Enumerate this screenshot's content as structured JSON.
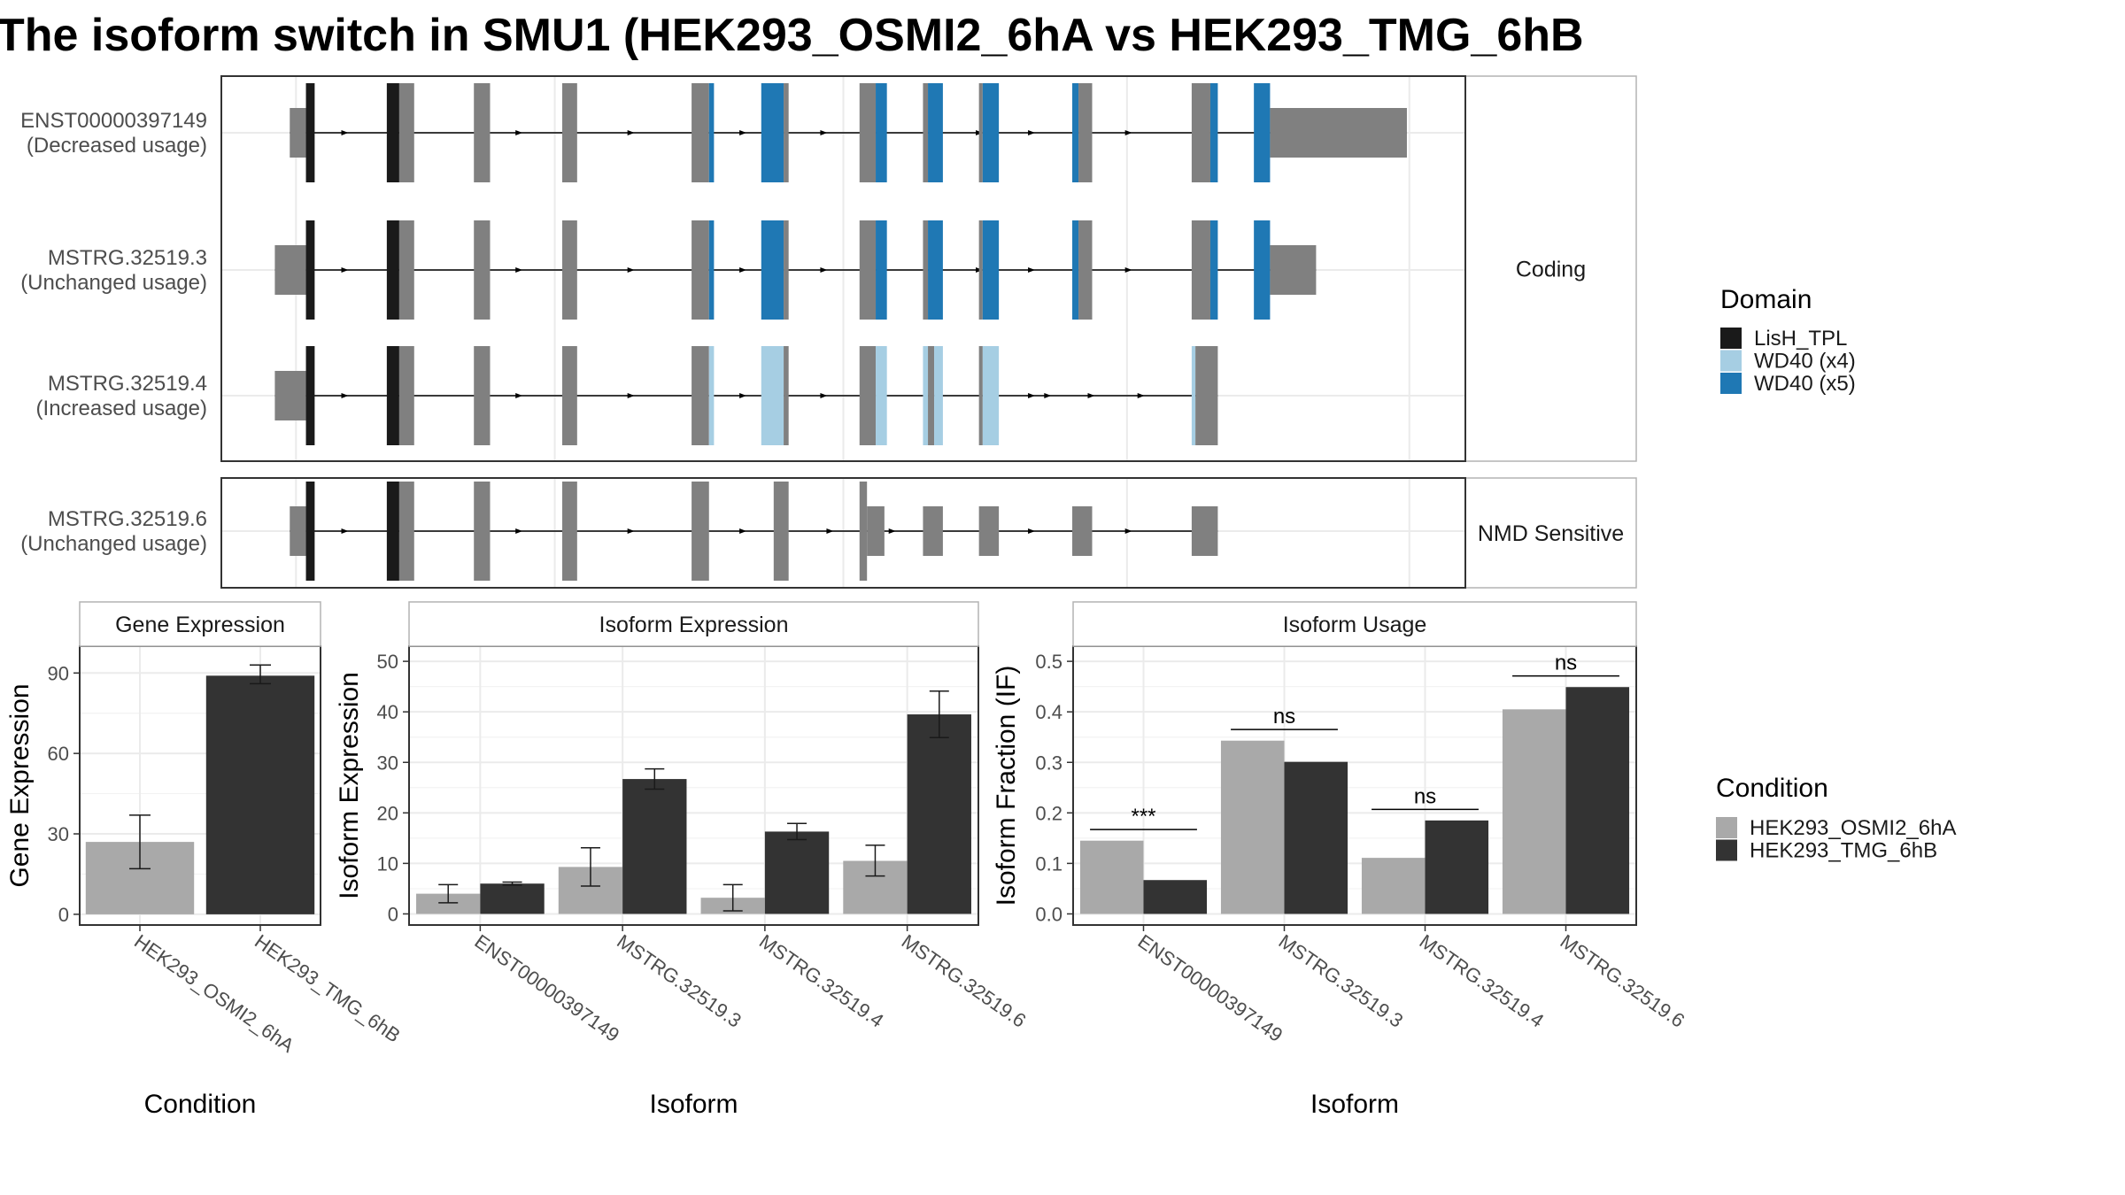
{
  "title": "The isoform switch in SMU1 (HEK293_OSMI2_6hA vs HEK293_TMG_6hB",
  "colors": {
    "exon": "#808080",
    "lish": "#1a1a1a",
    "wd40_x4": "#a6cee3",
    "wd40_x5": "#1f78b4",
    "cond_a": "#a9a9a9",
    "cond_b": "#333333",
    "grid": "#ebebeb",
    "panel_border": "#333333",
    "strip_border": "#b3b3b3"
  },
  "structure": {
    "groups": [
      {
        "label": "Coding",
        "rows": [
          0,
          1,
          2
        ]
      },
      {
        "label": "NMD Sensitive",
        "rows": [
          3
        ]
      }
    ],
    "transcripts": [
      {
        "name": "ENST00000397149",
        "usage": "(Decreased usage)",
        "start": 0.055,
        "end": 0.953,
        "exons": [
          {
            "s": 0.055,
            "e": 0.068,
            "h": "utr"
          },
          {
            "s": 0.068,
            "e": 0.075,
            "h": "lish"
          },
          {
            "s": 0.133,
            "e": 0.143,
            "h": "lish"
          },
          {
            "s": 0.143,
            "e": 0.155
          },
          {
            "s": 0.203,
            "e": 0.216
          },
          {
            "s": 0.274,
            "e": 0.286
          },
          {
            "s": 0.378,
            "e": 0.392
          },
          {
            "s": 0.392,
            "e": 0.396,
            "d": "wd40_x5"
          },
          {
            "s": 0.434,
            "e": 0.452,
            "d": "wd40_x5"
          },
          {
            "s": 0.452,
            "e": 0.456
          },
          {
            "s": 0.513,
            "e": 0.526
          },
          {
            "s": 0.526,
            "e": 0.535,
            "d": "wd40_x5"
          },
          {
            "s": 0.564,
            "e": 0.568
          },
          {
            "s": 0.568,
            "e": 0.58,
            "d": "wd40_x5"
          },
          {
            "s": 0.609,
            "e": 0.612
          },
          {
            "s": 0.612,
            "e": 0.625,
            "d": "wd40_x5"
          },
          {
            "s": 0.684,
            "e": 0.689,
            "d": "wd40_x5"
          },
          {
            "s": 0.689,
            "e": 0.7
          },
          {
            "s": 0.78,
            "e": 0.795
          },
          {
            "s": 0.795,
            "e": 0.801,
            "d": "wd40_x5"
          },
          {
            "s": 0.83,
            "e": 0.843,
            "d": "wd40_x5"
          },
          {
            "s": 0.843,
            "e": 0.953,
            "h": "utr"
          }
        ],
        "arrows": [
          0.1,
          0.24,
          0.33,
          0.42,
          0.485,
          0.61,
          0.652,
          0.73
        ]
      },
      {
        "name": "MSTRG.32519.3",
        "usage": "(Unchanged usage)",
        "start": 0.043,
        "end": 0.88,
        "exons": [
          {
            "s": 0.043,
            "e": 0.068,
            "h": "utr"
          },
          {
            "s": 0.068,
            "e": 0.075,
            "h": "lish"
          },
          {
            "s": 0.133,
            "e": 0.143,
            "h": "lish"
          },
          {
            "s": 0.143,
            "e": 0.155
          },
          {
            "s": 0.203,
            "e": 0.216
          },
          {
            "s": 0.274,
            "e": 0.286
          },
          {
            "s": 0.378,
            "e": 0.392
          },
          {
            "s": 0.392,
            "e": 0.396,
            "d": "wd40_x5"
          },
          {
            "s": 0.434,
            "e": 0.452,
            "d": "wd40_x5"
          },
          {
            "s": 0.452,
            "e": 0.456
          },
          {
            "s": 0.513,
            "e": 0.526
          },
          {
            "s": 0.526,
            "e": 0.535,
            "d": "wd40_x5"
          },
          {
            "s": 0.564,
            "e": 0.568
          },
          {
            "s": 0.568,
            "e": 0.58,
            "d": "wd40_x5"
          },
          {
            "s": 0.609,
            "e": 0.612
          },
          {
            "s": 0.612,
            "e": 0.625,
            "d": "wd40_x5"
          },
          {
            "s": 0.684,
            "e": 0.689,
            "d": "wd40_x5"
          },
          {
            "s": 0.689,
            "e": 0.7
          },
          {
            "s": 0.78,
            "e": 0.795
          },
          {
            "s": 0.795,
            "e": 0.801,
            "d": "wd40_x5"
          },
          {
            "s": 0.83,
            "e": 0.843,
            "d": "wd40_x5"
          },
          {
            "s": 0.843,
            "e": 0.88,
            "h": "utr"
          }
        ],
        "arrows": [
          0.1,
          0.24,
          0.33,
          0.42,
          0.485,
          0.61,
          0.652,
          0.73
        ]
      },
      {
        "name": "MSTRG.32519.4",
        "usage": "(Increased usage)",
        "start": 0.043,
        "end": 0.801,
        "exons": [
          {
            "s": 0.043,
            "e": 0.068,
            "h": "utr"
          },
          {
            "s": 0.068,
            "e": 0.075,
            "h": "lish"
          },
          {
            "s": 0.133,
            "e": 0.143,
            "h": "lish"
          },
          {
            "s": 0.143,
            "e": 0.155
          },
          {
            "s": 0.203,
            "e": 0.216
          },
          {
            "s": 0.274,
            "e": 0.286
          },
          {
            "s": 0.378,
            "e": 0.392
          },
          {
            "s": 0.392,
            "e": 0.396,
            "d": "wd40_x4"
          },
          {
            "s": 0.434,
            "e": 0.452,
            "d": "wd40_x4"
          },
          {
            "s": 0.452,
            "e": 0.456
          },
          {
            "s": 0.513,
            "e": 0.526
          },
          {
            "s": 0.526,
            "e": 0.535,
            "d": "wd40_x4"
          },
          {
            "s": 0.564,
            "e": 0.568,
            "d": "wd40_x4"
          },
          {
            "s": 0.568,
            "e": 0.573
          },
          {
            "s": 0.573,
            "e": 0.58,
            "d": "wd40_x4"
          },
          {
            "s": 0.609,
            "e": 0.612
          },
          {
            "s": 0.612,
            "e": 0.625,
            "d": "wd40_x4"
          },
          {
            "s": 0.78,
            "e": 0.783,
            "d": "wd40_x4"
          },
          {
            "s": 0.783,
            "e": 0.801
          }
        ],
        "arrows": [
          0.1,
          0.24,
          0.33,
          0.42,
          0.485,
          0.652,
          0.665,
          0.7,
          0.74
        ]
      },
      {
        "name": "MSTRG.32519.6",
        "usage": "(Unchanged usage)",
        "start": 0.055,
        "end": 0.801,
        "exons": [
          {
            "s": 0.055,
            "e": 0.068,
            "h": "utr"
          },
          {
            "s": 0.068,
            "e": 0.075,
            "h": "lish"
          },
          {
            "s": 0.133,
            "e": 0.143,
            "h": "lish"
          },
          {
            "s": 0.143,
            "e": 0.155
          },
          {
            "s": 0.203,
            "e": 0.216
          },
          {
            "s": 0.274,
            "e": 0.286
          },
          {
            "s": 0.378,
            "e": 0.392
          },
          {
            "s": 0.444,
            "e": 0.456
          },
          {
            "s": 0.513,
            "e": 0.519
          },
          {
            "s": 0.519,
            "e": 0.533,
            "h": "utr"
          },
          {
            "s": 0.564,
            "e": 0.58,
            "h": "utr"
          },
          {
            "s": 0.609,
            "e": 0.625,
            "h": "utr"
          },
          {
            "s": 0.684,
            "e": 0.7,
            "h": "utr"
          },
          {
            "s": 0.78,
            "e": 0.801,
            "h": "utr"
          }
        ],
        "arrows": [
          0.1,
          0.24,
          0.33,
          0.42,
          0.49,
          0.54,
          0.652,
          0.73
        ]
      }
    ]
  },
  "legends": {
    "domain": {
      "title": "Domain",
      "items": [
        {
          "label": "LisH_TPL",
          "color": "#1a1a1a"
        },
        {
          "label": "WD40 (x4)",
          "color": "#a6cee3"
        },
        {
          "label": "WD40 (x5)",
          "color": "#1f78b4"
        }
      ]
    },
    "condition": {
      "title": "Condition",
      "items": [
        {
          "label": "HEK293_OSMI2_6hA",
          "color": "#a9a9a9"
        },
        {
          "label": "HEK293_TMG_6hB",
          "color": "#333333"
        }
      ]
    }
  },
  "chart_data": [
    {
      "type": "bar",
      "strip": "Gene Expression",
      "xlabel": "Condition",
      "ylabel": "Gene Expression",
      "ylim": [
        -4,
        100
      ],
      "yticks": [
        0,
        30,
        60,
        90
      ],
      "categories": [
        "HEK293_OSMI2_6hA",
        "HEK293_TMG_6hB"
      ],
      "values": [
        27,
        89
      ],
      "errors": [
        [
          17,
          37
        ],
        [
          86,
          93
        ]
      ]
    },
    {
      "type": "bar",
      "strip": "Isoform Expression",
      "xlabel": "Isoform",
      "ylabel": "Isoform Expression",
      "ylim": [
        -2.2,
        53
      ],
      "yticks": [
        0,
        10,
        20,
        30,
        40,
        50
      ],
      "categories": [
        "ENST00000397149",
        "MSTRG.32519.3",
        "MSTRG.32519.4",
        "MSTRG.32519.6"
      ],
      "series": [
        {
          "name": "HEK293_OSMI2_6hA",
          "values": [
            4,
            9.3,
            3.2,
            10.5
          ],
          "errors": [
            [
              2.2,
              5.8
            ],
            [
              5.5,
              13.1
            ],
            [
              0.6,
              5.8
            ],
            [
              7.5,
              13.6
            ]
          ]
        },
        {
          "name": "HEK293_TMG_6hB",
          "values": [
            6,
            26.7,
            16.3,
            39.5
          ],
          "errors": [
            [
              5.7,
              6.3
            ],
            [
              24.7,
              28.7
            ],
            [
              14.7,
              17.9
            ],
            [
              34.9,
              44.1
            ]
          ]
        }
      ]
    },
    {
      "type": "bar",
      "strip": "Isoform Usage",
      "xlabel": "Isoform",
      "ylabel": "Isoform Fraction (IF)",
      "ylim": [
        -0.022,
        0.53
      ],
      "yticks": [
        0.0,
        0.1,
        0.2,
        0.3,
        0.4,
        0.5
      ],
      "ytick_labels": [
        "0.0",
        "0.1",
        "0.2",
        "0.3",
        "0.4",
        "0.5"
      ],
      "categories": [
        "ENST00000397149",
        "MSTRG.32519.3",
        "MSTRG.32519.4",
        "MSTRG.32519.6"
      ],
      "series": [
        {
          "name": "HEK293_OSMI2_6hA",
          "values": [
            0.145,
            0.343,
            0.111,
            0.405
          ]
        },
        {
          "name": "HEK293_TMG_6hB",
          "values": [
            0.067,
            0.301,
            0.185,
            0.449
          ]
        }
      ],
      "significance": [
        {
          "label": "***",
          "y": 0.167
        },
        {
          "label": "ns",
          "y": 0.365
        },
        {
          "label": "ns",
          "y": 0.207
        },
        {
          "label": "ns",
          "y": 0.471
        }
      ]
    }
  ]
}
